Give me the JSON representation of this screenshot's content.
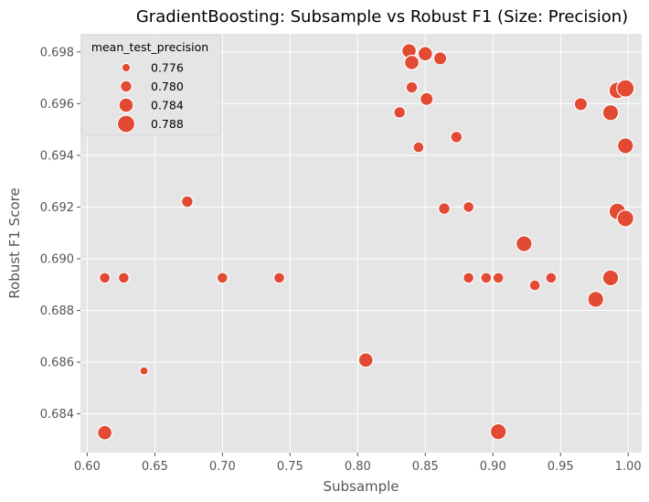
{
  "chart_data": {
    "type": "scatter",
    "title": "GradientBoosting: Subsample vs Robust F1 (Size: Precision)",
    "xlabel": "Subsample",
    "ylabel": "Robust F1 Score",
    "xlim": [
      0.595,
      1.01
    ],
    "ylim": [
      0.6825,
      0.6987
    ],
    "xticks": [
      "0.60",
      "0.65",
      "0.70",
      "0.75",
      "0.80",
      "0.85",
      "0.90",
      "0.95",
      "1.00"
    ],
    "yticks": [
      "0.684",
      "0.686",
      "0.688",
      "0.690",
      "0.692",
      "0.694",
      "0.696",
      "0.698"
    ],
    "grid": true,
    "legend": {
      "title": "mean_test_precision",
      "placement": "top-left",
      "entries": [
        "0.776",
        "0.780",
        "0.784",
        "0.788"
      ]
    },
    "size_variable": "mean_test_precision",
    "marker_color": "#E24A33",
    "background_color": "#E5E5E5",
    "points": [
      {
        "x": 0.613,
        "y": 0.68926,
        "size": 0.779
      },
      {
        "x": 0.627,
        "y": 0.68926,
        "size": 0.779
      },
      {
        "x": 0.642,
        "y": 0.68566,
        "size": 0.7755
      },
      {
        "x": 0.674,
        "y": 0.69221,
        "size": 0.78
      },
      {
        "x": 0.7,
        "y": 0.68926,
        "size": 0.779
      },
      {
        "x": 0.742,
        "y": 0.68926,
        "size": 0.779
      },
      {
        "x": 0.613,
        "y": 0.68327,
        "size": 0.784
      },
      {
        "x": 0.806,
        "y": 0.68608,
        "size": 0.784
      },
      {
        "x": 0.831,
        "y": 0.69566,
        "size": 0.78
      },
      {
        "x": 0.838,
        "y": 0.69804,
        "size": 0.784
      },
      {
        "x": 0.84,
        "y": 0.69759,
        "size": 0.784
      },
      {
        "x": 0.84,
        "y": 0.69663,
        "size": 0.78
      },
      {
        "x": 0.845,
        "y": 0.69431,
        "size": 0.779
      },
      {
        "x": 0.85,
        "y": 0.69793,
        "size": 0.784
      },
      {
        "x": 0.851,
        "y": 0.69618,
        "size": 0.782
      },
      {
        "x": 0.861,
        "y": 0.69775,
        "size": 0.782
      },
      {
        "x": 0.864,
        "y": 0.69194,
        "size": 0.78
      },
      {
        "x": 0.873,
        "y": 0.69471,
        "size": 0.78
      },
      {
        "x": 0.882,
        "y": 0.692,
        "size": 0.779
      },
      {
        "x": 0.882,
        "y": 0.68926,
        "size": 0.779
      },
      {
        "x": 0.895,
        "y": 0.68926,
        "size": 0.779
      },
      {
        "x": 0.904,
        "y": 0.68926,
        "size": 0.779
      },
      {
        "x": 0.904,
        "y": 0.68331,
        "size": 0.786
      },
      {
        "x": 0.923,
        "y": 0.69058,
        "size": 0.786
      },
      {
        "x": 0.931,
        "y": 0.68897,
        "size": 0.779
      },
      {
        "x": 0.943,
        "y": 0.68926,
        "size": 0.779
      },
      {
        "x": 0.965,
        "y": 0.69598,
        "size": 0.782
      },
      {
        "x": 0.976,
        "y": 0.68843,
        "size": 0.786
      },
      {
        "x": 0.987,
        "y": 0.69565,
        "size": 0.786
      },
      {
        "x": 0.987,
        "y": 0.68926,
        "size": 0.786
      },
      {
        "x": 0.992,
        "y": 0.69651,
        "size": 0.787
      },
      {
        "x": 0.992,
        "y": 0.69183,
        "size": 0.787
      },
      {
        "x": 0.998,
        "y": 0.69659,
        "size": 0.788
      },
      {
        "x": 0.998,
        "y": 0.69437,
        "size": 0.786
      },
      {
        "x": 0.998,
        "y": 0.69156,
        "size": 0.787
      }
    ]
  }
}
